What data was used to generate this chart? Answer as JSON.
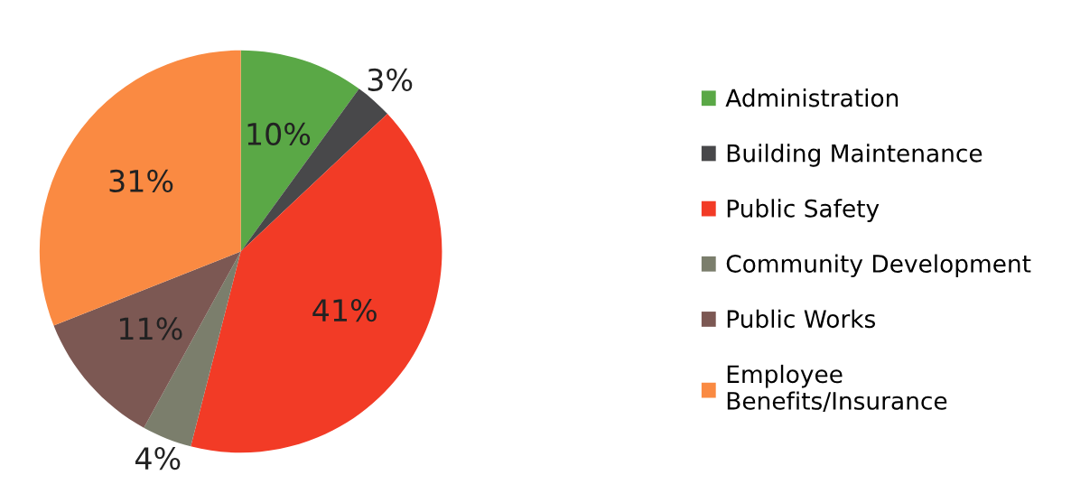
{
  "chart_data": {
    "type": "pie",
    "categories": [
      "Administration",
      "Building Maintenance",
      "Public Safety",
      "Community Development",
      "Public Works",
      "Employee\nBenefits/Insurance"
    ],
    "values": [
      10,
      3,
      41,
      4,
      11,
      31
    ],
    "colors": [
      "#5aa846",
      "#48484a",
      "#f23b26",
      "#7b7e6c",
      "#7c5853",
      "#fa8a42"
    ],
    "value_labels": [
      "10%",
      "3%",
      "41%",
      "4%",
      "11%",
      "31%"
    ],
    "legend": "right"
  }
}
